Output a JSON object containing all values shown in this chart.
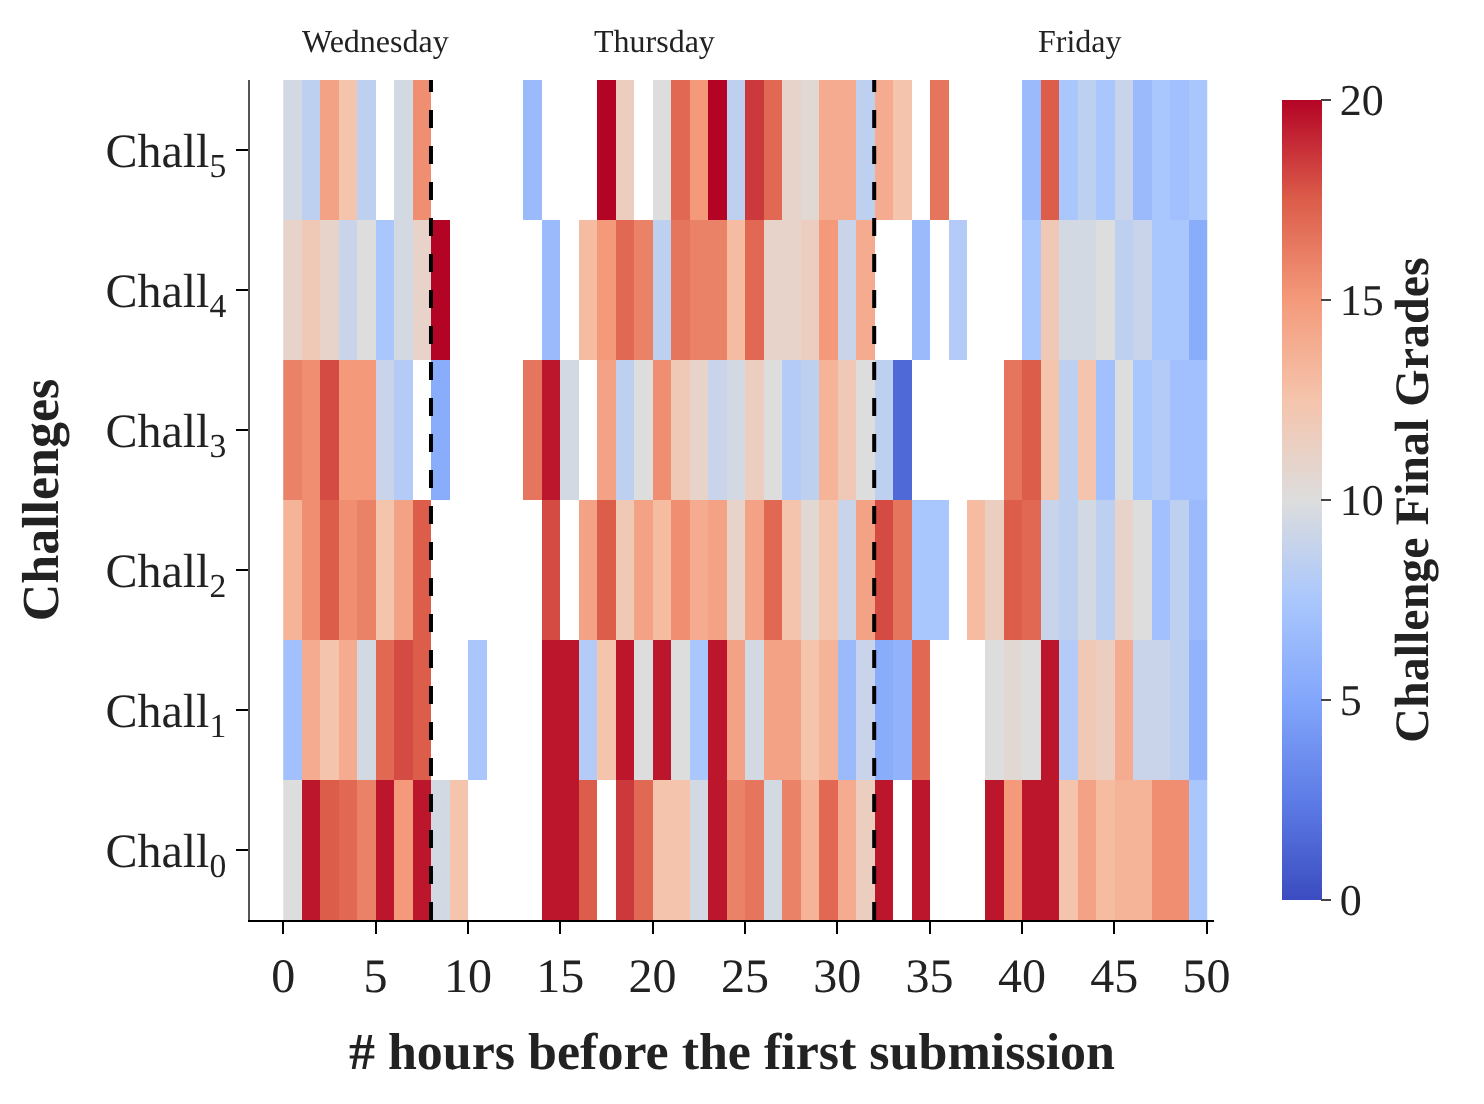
{
  "chart_data": {
    "type": "heatmap",
    "xlabel": "# hours before the first submission",
    "ylabel": "Challenges",
    "clabel": "Challenge Final Grades",
    "x": [
      0.5,
      1.5,
      2.5,
      3.5,
      4.5,
      5.5,
      6.5,
      7.5,
      8.5,
      9.5,
      10.5,
      11.5,
      12.5,
      13.5,
      14.5,
      15.5,
      16.5,
      17.5,
      18.5,
      19.5,
      20.5,
      21.5,
      22.5,
      23.5,
      24.5,
      25.5,
      26.5,
      27.5,
      28.5,
      29.5,
      30.5,
      31.5,
      32.5,
      33.5,
      34.5,
      35.5,
      36.5,
      37.5,
      38.5,
      39.5,
      40.5,
      41.5,
      42.5,
      43.5,
      44.5,
      45.5,
      46.5,
      47.5,
      48.5,
      49.5
    ],
    "y_categories": [
      "Chall$_{5}$",
      "Chall$_{4}$",
      "Chall$_{3}$",
      "Chall$_{2}$",
      "Chall$_{1}$",
      "Chall$_{0}$"
    ],
    "cells": [
      [
        9.5,
        8.5,
        14.5,
        12.5,
        8.5,
        null,
        9.5,
        15.5,
        null,
        null,
        null,
        null,
        null,
        6.5,
        null,
        null,
        null,
        20,
        11.5,
        null,
        10,
        17,
        15,
        20,
        8.5,
        18.5,
        17,
        11,
        10.5,
        14,
        14,
        8.5,
        14,
        12.5,
        null,
        16.5,
        null,
        null,
        null,
        null,
        6.5,
        17.5,
        7.5,
        8.5,
        7.5,
        9,
        6.5,
        7.5,
        7,
        7.5
      ],
      [
        11,
        12,
        11,
        9,
        10,
        7.5,
        9.5,
        11,
        20,
        null,
        null,
        null,
        null,
        null,
        6.5,
        null,
        13,
        15,
        17,
        16,
        8.5,
        16.5,
        16,
        16,
        13,
        17,
        11,
        11,
        11.5,
        15,
        9,
        14,
        null,
        null,
        6.5,
        null,
        8,
        null,
        null,
        null,
        7.5,
        12,
        9.5,
        9.5,
        10,
        8.5,
        9,
        7.5,
        7.5,
        5.5
      ],
      [
        16,
        15.5,
        18,
        15,
        15,
        9,
        8,
        null,
        5.5,
        null,
        null,
        null,
        null,
        16.5,
        19.5,
        9.5,
        null,
        14.5,
        8.5,
        10,
        15.5,
        12,
        11,
        9,
        9.5,
        11.5,
        10,
        8,
        8.5,
        13.5,
        12,
        10,
        8.5,
        1.5,
        null,
        null,
        null,
        null,
        null,
        16.5,
        17.5,
        12.5,
        8.5,
        12.5,
        7,
        10,
        7.5,
        8,
        7,
        7
      ],
      [
        13.5,
        15.5,
        17.5,
        15.5,
        16,
        12.5,
        14.5,
        17.5,
        null,
        null,
        null,
        null,
        null,
        null,
        18,
        null,
        14.5,
        17.5,
        12,
        14.5,
        13,
        15.5,
        14,
        14.5,
        11,
        14.5,
        17,
        12.5,
        10.5,
        12.5,
        9,
        14.5,
        18,
        16.5,
        7.5,
        7.5,
        null,
        13,
        11.5,
        17.5,
        17,
        9,
        8.5,
        9.5,
        8.5,
        11,
        10,
        7,
        8.5,
        6.5
      ],
      [
        7,
        14,
        12.5,
        14,
        9.5,
        17,
        18,
        17.5,
        null,
        null,
        7.5,
        null,
        null,
        null,
        19.5,
        19.5,
        8,
        12.5,
        19.5,
        10,
        19.5,
        10,
        7.5,
        19.5,
        14.5,
        9.5,
        14.5,
        14.5,
        12.5,
        13.5,
        6.5,
        9,
        5.5,
        6,
        17,
        null,
        null,
        null,
        10,
        10.5,
        10,
        19.5,
        8,
        12,
        11.5,
        14,
        9,
        9,
        8.5,
        6
      ],
      [
        10,
        19.5,
        17.5,
        17,
        16,
        19.5,
        15,
        19.5,
        9.5,
        12.5,
        null,
        null,
        null,
        null,
        19.5,
        19.5,
        17.5,
        null,
        18.5,
        17,
        12.5,
        12.5,
        9.5,
        19.5,
        16,
        16.5,
        9.5,
        16,
        13.5,
        17,
        14,
        11.5,
        19.5,
        null,
        19.5,
        null,
        null,
        null,
        19.5,
        15,
        19.5,
        19.5,
        12.5,
        14.5,
        13,
        13.5,
        13.5,
        15.5,
        15.5,
        7.5
      ]
    ],
    "clim": [
      0,
      20
    ],
    "cticks": [
      0,
      5,
      10,
      15,
      20
    ],
    "xlim": [
      -1.8,
      50.4
    ],
    "xticks": [
      0,
      5,
      10,
      15,
      20,
      25,
      30,
      35,
      40,
      45,
      50
    ],
    "ref_lines": [
      {
        "axis": "x",
        "value": 8,
        "label": null,
        "color": "#000000",
        "line_style": "dashed"
      },
      {
        "axis": "x",
        "value": 32,
        "label": null,
        "color": "#000000",
        "line_style": "dashed"
      }
    ],
    "annotations": [
      "Wednesday",
      "Thursday",
      "Friday"
    ]
  }
}
